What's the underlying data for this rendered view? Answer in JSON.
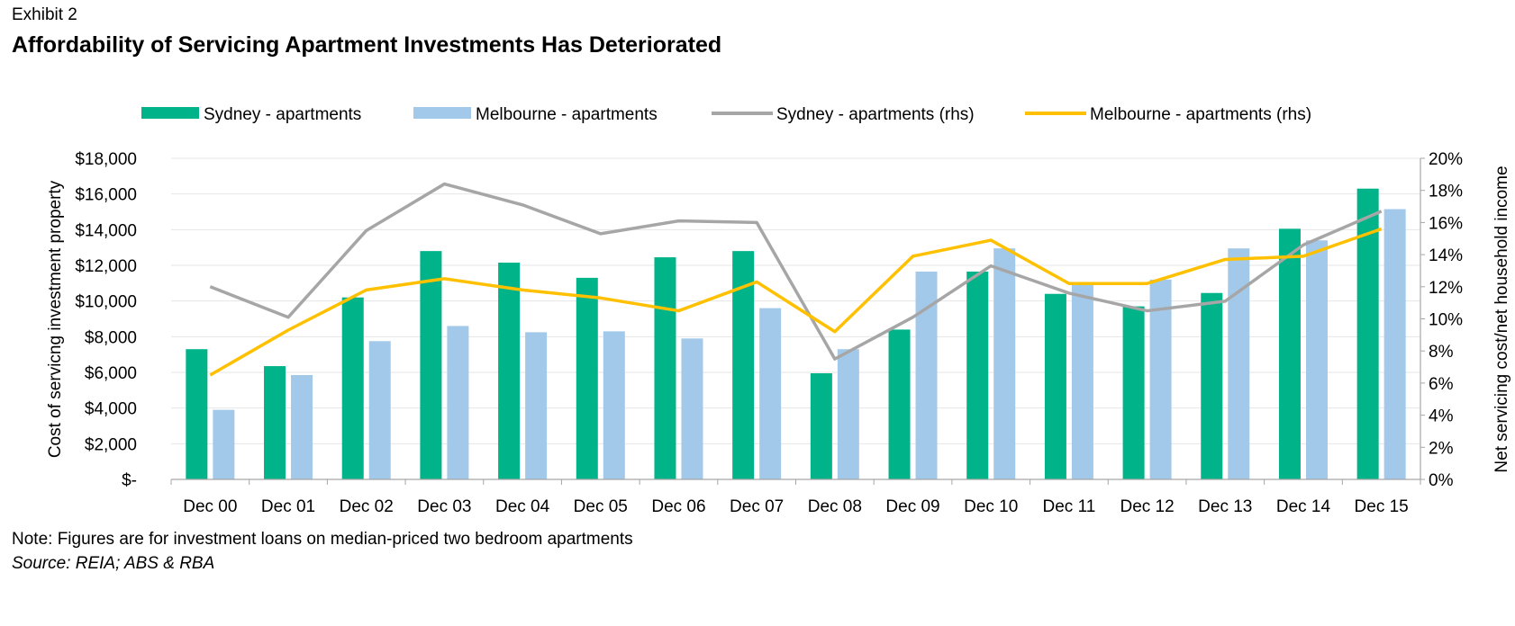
{
  "exhibit_label": "Exhibit 2",
  "title": "Affordability of Servicing Apartment Investments Has Deteriorated",
  "note": "Note: Figures are for investment loans on median-priced two bedroom apartments",
  "source": "Source: REIA; ABS & RBA",
  "colors": {
    "sydney_bar": "#00b388",
    "melbourne_bar": "#a3c9ea",
    "sydney_line": "#a6a6a6",
    "melbourne_line": "#ffc000",
    "grid": "#e6e6e6",
    "axis": "#a6a6a6"
  },
  "chart_data": {
    "type": "bar",
    "categories": [
      "Dec 00",
      "Dec 01",
      "Dec 02",
      "Dec 03",
      "Dec 04",
      "Dec 05",
      "Dec 06",
      "Dec 07",
      "Dec 08",
      "Dec 09",
      "Dec 10",
      "Dec 11",
      "Dec 12",
      "Dec 13",
      "Dec 14",
      "Dec 15"
    ],
    "series": [
      {
        "name": "Sydney - apartments",
        "type": "bar",
        "axis": "left",
        "values": [
          7300,
          6350,
          10200,
          12800,
          12150,
          11300,
          12450,
          12800,
          5950,
          8400,
          11650,
          10400,
          9700,
          10450,
          14050,
          16300
        ]
      },
      {
        "name": "Melbourne - apartments",
        "type": "bar",
        "axis": "left",
        "values": [
          3900,
          5850,
          7750,
          8600,
          8250,
          8300,
          7900,
          9600,
          7300,
          11650,
          12950,
          11000,
          11200,
          12950,
          13400,
          15150
        ]
      },
      {
        "name": "Sydney - apartments (rhs)",
        "type": "line",
        "axis": "right",
        "values": [
          12.0,
          10.1,
          15.5,
          18.4,
          17.1,
          15.3,
          16.1,
          16.0,
          7.5,
          10.1,
          13.3,
          11.6,
          10.5,
          11.1,
          14.6,
          16.7
        ]
      },
      {
        "name": "Melbourne - apartments (rhs)",
        "type": "line",
        "axis": "right",
        "values": [
          6.5,
          9.3,
          11.8,
          12.5,
          11.8,
          11.3,
          10.5,
          12.3,
          9.2,
          13.9,
          14.9,
          12.2,
          12.2,
          13.7,
          13.9,
          15.6
        ]
      }
    ],
    "ylabel": "Cost of servicng  investment property",
    "y2label": "Net servicing cost/net household income",
    "ylim": [
      0,
      18000
    ],
    "y2lim": [
      0,
      20
    ],
    "yticks": [
      0,
      2000,
      4000,
      6000,
      8000,
      10000,
      12000,
      14000,
      16000,
      18000
    ],
    "ytick_labels": [
      "$-",
      "$2,000",
      "$4,000",
      "$6,000",
      "$8,000",
      "$10,000",
      "$12,000",
      "$14,000",
      "$16,000",
      "$18,000"
    ],
    "y2ticks": [
      0,
      2,
      4,
      6,
      8,
      10,
      12,
      14,
      16,
      18,
      20
    ],
    "y2tick_labels": [
      "0%",
      "2%",
      "4%",
      "6%",
      "8%",
      "10%",
      "12%",
      "14%",
      "16%",
      "18%",
      "20%"
    ],
    "legend_position": "top",
    "grid": true
  }
}
